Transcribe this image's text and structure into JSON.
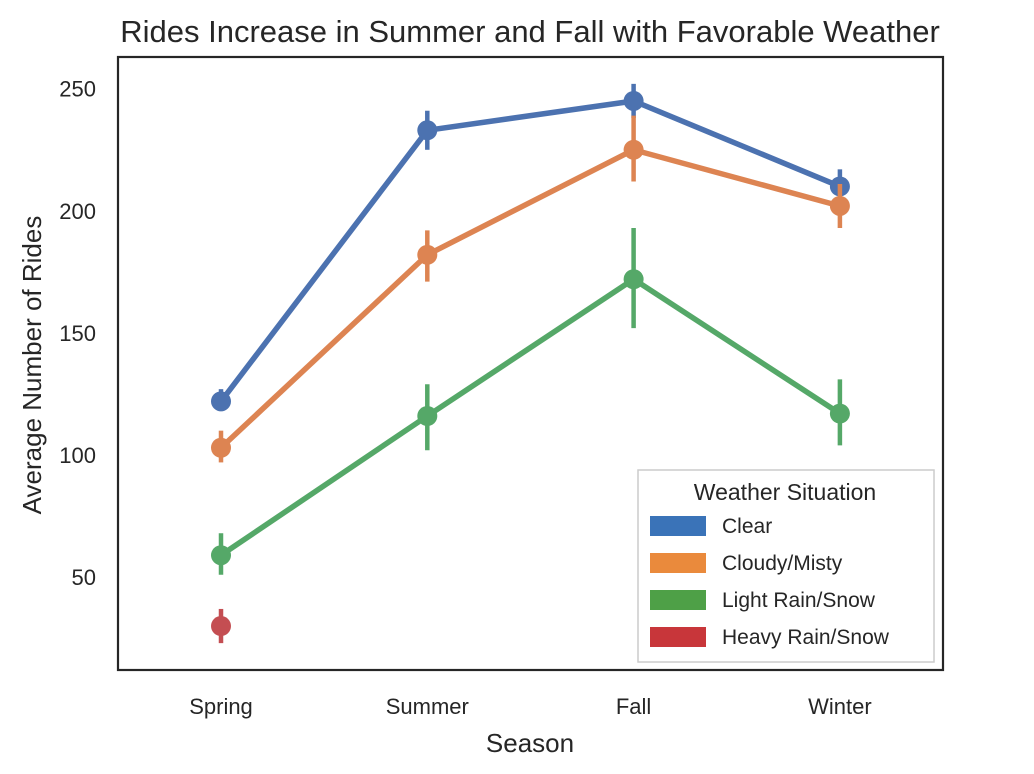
{
  "chart_data": {
    "type": "line",
    "title": "Rides Increase in Summer and Fall with Favorable Weather",
    "xlabel": "Season",
    "ylabel": "Average Number of Rides",
    "categories": [
      "Spring",
      "Summer",
      "Fall",
      "Winter"
    ],
    "ylim": [
      12,
      263
    ],
    "yticks": [
      50,
      100,
      150,
      200,
      250
    ],
    "grid": false,
    "legend": {
      "title": "Weather Situation",
      "placement": "lower-right",
      "entries": [
        {
          "label": "Clear",
          "color": "#3a73b8"
        },
        {
          "label": "Cloudy/Misty",
          "color": "#ea8a3c"
        },
        {
          "label": "Light Rain/Snow",
          "color": "#4ea047"
        },
        {
          "label": "Heavy Rain/Snow",
          "color": "#c8363a"
        }
      ]
    },
    "series": [
      {
        "name": "Clear",
        "color": "#4c72b0",
        "values": [
          122,
          233,
          245,
          210
        ],
        "errors": [
          [
            119,
            127
          ],
          [
            225,
            241
          ],
          [
            238,
            252
          ],
          [
            203,
            217
          ]
        ]
      },
      {
        "name": "Cloudy/Misty",
        "color": "#dd8452",
        "values": [
          103,
          182,
          225,
          202
        ],
        "errors": [
          [
            97,
            110
          ],
          [
            171,
            192
          ],
          [
            212,
            239
          ],
          [
            193,
            211
          ]
        ]
      },
      {
        "name": "Light Rain/Snow",
        "color": "#55a868",
        "values": [
          59,
          116,
          172,
          117
        ],
        "errors": [
          [
            51,
            68
          ],
          [
            102,
            129
          ],
          [
            152,
            193
          ],
          [
            104,
            131
          ]
        ]
      },
      {
        "name": "Heavy Rain/Snow",
        "color": "#c44e52",
        "values": [
          30,
          null,
          null,
          null
        ],
        "errors": [
          [
            23,
            37
          ],
          null,
          null,
          null
        ]
      }
    ]
  }
}
